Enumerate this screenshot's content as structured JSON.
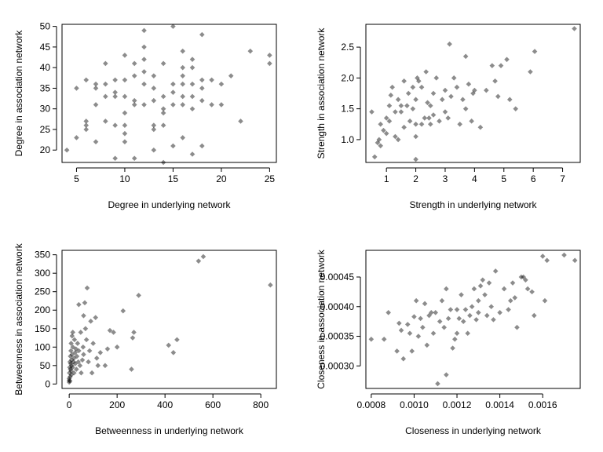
{
  "colors": {
    "point": "#000000",
    "point_opacity": 0.45,
    "frame": "#000000",
    "background": "#ffffff"
  },
  "chart_data": [
    {
      "type": "scatter",
      "xlabel": "Degree in underlying network",
      "ylabel": "Degree in association network",
      "xlim": [
        3.5,
        25.7
      ],
      "ylim": [
        17,
        50.5
      ],
      "xticks": [
        5,
        10,
        15,
        20,
        25
      ],
      "xtick_labels": [
        "5",
        "10",
        "15",
        "20",
        "25"
      ],
      "yticks": [
        20,
        25,
        30,
        35,
        40,
        45,
        50
      ],
      "ytick_labels": [
        "20",
        "25",
        "30",
        "35",
        "40",
        "45",
        "50"
      ],
      "points": [
        [
          4,
          20
        ],
        [
          5,
          23
        ],
        [
          5,
          35
        ],
        [
          6,
          25
        ],
        [
          6,
          26
        ],
        [
          6,
          27
        ],
        [
          6,
          37
        ],
        [
          7,
          22
        ],
        [
          7,
          31
        ],
        [
          7,
          35
        ],
        [
          7,
          36
        ],
        [
          8,
          27
        ],
        [
          8,
          33
        ],
        [
          8,
          36
        ],
        [
          8,
          41
        ],
        [
          9,
          18
        ],
        [
          9,
          26
        ],
        [
          9,
          33
        ],
        [
          9,
          34
        ],
        [
          9,
          37
        ],
        [
          10,
          22
        ],
        [
          10,
          24
        ],
        [
          10,
          26
        ],
        [
          10,
          29
        ],
        [
          10,
          33
        ],
        [
          10,
          37
        ],
        [
          10,
          43
        ],
        [
          11,
          18
        ],
        [
          11,
          31
        ],
        [
          11,
          32
        ],
        [
          11,
          38
        ],
        [
          11,
          41
        ],
        [
          12,
          31
        ],
        [
          12,
          36
        ],
        [
          12,
          39
        ],
        [
          12,
          42
        ],
        [
          12,
          45
        ],
        [
          12,
          49
        ],
        [
          13,
          20
        ],
        [
          13,
          25
        ],
        [
          13,
          26
        ],
        [
          13,
          32
        ],
        [
          13,
          35
        ],
        [
          13,
          38
        ],
        [
          14,
          17
        ],
        [
          14,
          26
        ],
        [
          14,
          29
        ],
        [
          14,
          30
        ],
        [
          14,
          33
        ],
        [
          14,
          41
        ],
        [
          15,
          21
        ],
        [
          15,
          31
        ],
        [
          15,
          34
        ],
        [
          15,
          36
        ],
        [
          15,
          50
        ],
        [
          16,
          23
        ],
        [
          16,
          31
        ],
        [
          16,
          33
        ],
        [
          16,
          36
        ],
        [
          16,
          38
        ],
        [
          16,
          40
        ],
        [
          16,
          44
        ],
        [
          17,
          19
        ],
        [
          17,
          30
        ],
        [
          17,
          33
        ],
        [
          17,
          36
        ],
        [
          17,
          40
        ],
        [
          17,
          42
        ],
        [
          18,
          21
        ],
        [
          18,
          32
        ],
        [
          18,
          35
        ],
        [
          18,
          37
        ],
        [
          18,
          48
        ],
        [
          19,
          31
        ],
        [
          19,
          37
        ],
        [
          20,
          31
        ],
        [
          20,
          36
        ],
        [
          21,
          38
        ],
        [
          22,
          27
        ],
        [
          23,
          44
        ],
        [
          25,
          41
        ],
        [
          25,
          43
        ]
      ]
    },
    {
      "type": "scatter",
      "xlabel": "Strength in underlying network",
      "ylabel": "Strength in association network",
      "xlim": [
        0.3,
        7.6
      ],
      "ylim": [
        0.63,
        2.87
      ],
      "xticks": [
        1,
        2,
        3,
        4,
        5,
        6,
        7
      ],
      "xtick_labels": [
        "1",
        "2",
        "3",
        "4",
        "5",
        "6",
        "7"
      ],
      "yticks": [
        1.0,
        1.5,
        2.0,
        2.5
      ],
      "ytick_labels": [
        "1.0",
        "1.5",
        "2.0",
        "2.5"
      ],
      "points": [
        [
          0.5,
          1.45
        ],
        [
          0.6,
          0.72
        ],
        [
          0.7,
          0.95
        ],
        [
          0.75,
          1.0
        ],
        [
          0.8,
          0.9
        ],
        [
          0.8,
          1.25
        ],
        [
          0.9,
          1.15
        ],
        [
          1.0,
          1.1
        ],
        [
          1.0,
          1.35
        ],
        [
          1.1,
          1.3
        ],
        [
          1.1,
          1.55
        ],
        [
          1.15,
          1.72
        ],
        [
          1.2,
          1.85
        ],
        [
          1.3,
          1.05
        ],
        [
          1.3,
          1.45
        ],
        [
          1.4,
          1.0
        ],
        [
          1.4,
          1.65
        ],
        [
          1.5,
          1.45
        ],
        [
          1.5,
          1.55
        ],
        [
          1.6,
          1.2
        ],
        [
          1.6,
          1.95
        ],
        [
          1.7,
          1.55
        ],
        [
          1.75,
          1.75
        ],
        [
          1.8,
          1.3
        ],
        [
          1.9,
          1.5
        ],
        [
          1.9,
          1.85
        ],
        [
          2.0,
          0.68
        ],
        [
          2.0,
          1.05
        ],
        [
          2.0,
          1.25
        ],
        [
          2.0,
          1.65
        ],
        [
          2.05,
          2.0
        ],
        [
          2.1,
          1.95
        ],
        [
          2.2,
          1.25
        ],
        [
          2.2,
          1.85
        ],
        [
          2.3,
          1.35
        ],
        [
          2.35,
          2.1
        ],
        [
          2.4,
          1.6
        ],
        [
          2.45,
          1.35
        ],
        [
          2.5,
          1.25
        ],
        [
          2.5,
          1.55
        ],
        [
          2.6,
          1.4
        ],
        [
          2.6,
          1.75
        ],
        [
          2.7,
          2.0
        ],
        [
          2.8,
          1.3
        ],
        [
          2.9,
          1.65
        ],
        [
          3.0,
          1.45
        ],
        [
          3.0,
          1.8
        ],
        [
          3.1,
          1.35
        ],
        [
          3.15,
          2.55
        ],
        [
          3.2,
          1.7
        ],
        [
          3.3,
          2.0
        ],
        [
          3.4,
          1.85
        ],
        [
          3.5,
          1.25
        ],
        [
          3.6,
          1.65
        ],
        [
          3.7,
          1.5
        ],
        [
          3.7,
          2.35
        ],
        [
          3.8,
          1.9
        ],
        [
          3.9,
          1.3
        ],
        [
          3.95,
          1.75
        ],
        [
          4.0,
          1.8
        ],
        [
          4.2,
          1.2
        ],
        [
          4.4,
          1.8
        ],
        [
          4.6,
          2.2
        ],
        [
          4.7,
          1.95
        ],
        [
          4.8,
          1.7
        ],
        [
          4.9,
          2.2
        ],
        [
          5.1,
          2.3
        ],
        [
          5.2,
          1.65
        ],
        [
          5.4,
          1.5
        ],
        [
          5.9,
          2.1
        ],
        [
          6.05,
          2.43
        ],
        [
          7.4,
          2.8
        ]
      ]
    },
    {
      "type": "scatter",
      "xlabel": "Betweenness in underlying network",
      "ylabel": "Betweenness in association network",
      "xlim": [
        -30,
        865
      ],
      "ylim": [
        -12,
        362
      ],
      "xticks": [
        0,
        200,
        400,
        600,
        800
      ],
      "xtick_labels": [
        "0",
        "200",
        "400",
        "600",
        "800"
      ],
      "yticks": [
        0,
        50,
        100,
        150,
        200,
        250,
        300,
        350
      ],
      "ytick_labels": [
        "0",
        "50",
        "100",
        "150",
        "200",
        "250",
        "300",
        "350"
      ],
      "points": [
        [
          0,
          5
        ],
        [
          0,
          10
        ],
        [
          0,
          15
        ],
        [
          1,
          30
        ],
        [
          2,
          45
        ],
        [
          3,
          60
        ],
        [
          3,
          8
        ],
        [
          4,
          20
        ],
        [
          5,
          40
        ],
        [
          5,
          75
        ],
        [
          6,
          55
        ],
        [
          7,
          90
        ],
        [
          8,
          35
        ],
        [
          8,
          110
        ],
        [
          9,
          25
        ],
        [
          10,
          65
        ],
        [
          10,
          50
        ],
        [
          12,
          130
        ],
        [
          12,
          80
        ],
        [
          14,
          45
        ],
        [
          15,
          100
        ],
        [
          15,
          140
        ],
        [
          18,
          60
        ],
        [
          20,
          70
        ],
        [
          20,
          30
        ],
        [
          22,
          120
        ],
        [
          25,
          85
        ],
        [
          25,
          55
        ],
        [
          28,
          95
        ],
        [
          30,
          40
        ],
        [
          32,
          75
        ],
        [
          35,
          110
        ],
        [
          38,
          60
        ],
        [
          40,
          215
        ],
        [
          40,
          90
        ],
        [
          45,
          50
        ],
        [
          48,
          140
        ],
        [
          50,
          30
        ],
        [
          55,
          65
        ],
        [
          58,
          100
        ],
        [
          60,
          185
        ],
        [
          60,
          80
        ],
        [
          65,
          220
        ],
        [
          68,
          150
        ],
        [
          72,
          120
        ],
        [
          75,
          260
        ],
        [
          80,
          60
        ],
        [
          85,
          90
        ],
        [
          90,
          170
        ],
        [
          95,
          30
        ],
        [
          100,
          110
        ],
        [
          110,
          180
        ],
        [
          115,
          70
        ],
        [
          120,
          50
        ],
        [
          130,
          85
        ],
        [
          150,
          50
        ],
        [
          160,
          95
        ],
        [
          170,
          145
        ],
        [
          185,
          140
        ],
        [
          200,
          100
        ],
        [
          225,
          198
        ],
        [
          260,
          40
        ],
        [
          265,
          125
        ],
        [
          270,
          140
        ],
        [
          290,
          240
        ],
        [
          415,
          105
        ],
        [
          435,
          85
        ],
        [
          450,
          120
        ],
        [
          540,
          333
        ],
        [
          560,
          345
        ],
        [
          840,
          268
        ]
      ]
    },
    {
      "type": "scatter",
      "xlabel": "Closeness in underlying network",
      "ylabel": "Closeness in association network",
      "xlim": [
        0.000775,
        0.001775
      ],
      "ylim": [
        0.000262,
        0.000495
      ],
      "xticks": [
        0.0008,
        0.001,
        0.0012,
        0.0014,
        0.0016
      ],
      "xtick_labels": [
        "0.0008",
        "0.0010",
        "0.0012",
        "0.0014",
        "0.0016"
      ],
      "yticks": [
        0.0003,
        0.00035,
        0.0004,
        0.00045
      ],
      "ytick_labels": [
        "0.00030",
        "0.00035",
        "0.00040",
        "0.00045"
      ],
      "points": [
        [
          0.0008,
          0.000345
        ],
        [
          0.00086,
          0.000345
        ],
        [
          0.00088,
          0.00039
        ],
        [
          0.00092,
          0.000325
        ],
        [
          0.00093,
          0.000372
        ],
        [
          0.00094,
          0.00036
        ],
        [
          0.00095,
          0.000312
        ],
        [
          0.00097,
          0.00037
        ],
        [
          0.00098,
          0.000355
        ],
        [
          0.00099,
          0.000325
        ],
        [
          0.001,
          0.000383
        ],
        [
          0.00101,
          0.00041
        ],
        [
          0.00102,
          0.00035
        ],
        [
          0.00103,
          0.00038
        ],
        [
          0.00104,
          0.000365
        ],
        [
          0.00105,
          0.000405
        ],
        [
          0.00106,
          0.000335
        ],
        [
          0.00107,
          0.000385
        ],
        [
          0.00108,
          0.00039
        ],
        [
          0.00109,
          0.000355
        ],
        [
          0.0011,
          0.00039
        ],
        [
          0.00111,
          0.00027
        ],
        [
          0.00112,
          0.000375
        ],
        [
          0.00113,
          0.00041
        ],
        [
          0.00114,
          0.000365
        ],
        [
          0.00115,
          0.00043
        ],
        [
          0.00115,
          0.000285
        ],
        [
          0.00116,
          0.00038
        ],
        [
          0.00117,
          0.000395
        ],
        [
          0.00118,
          0.00033
        ],
        [
          0.00119,
          0.000345
        ],
        [
          0.0012,
          0.000395
        ],
        [
          0.0012,
          0.000355
        ],
        [
          0.00121,
          0.00038
        ],
        [
          0.00122,
          0.00042
        ],
        [
          0.00123,
          0.000375
        ],
        [
          0.00124,
          0.000395
        ],
        [
          0.00125,
          0.000355
        ],
        [
          0.00126,
          0.000385
        ],
        [
          0.00127,
          0.0004
        ],
        [
          0.00128,
          0.00043
        ],
        [
          0.00129,
          0.000378
        ],
        [
          0.0013,
          0.00039
        ],
        [
          0.0013,
          0.00041
        ],
        [
          0.00131,
          0.000435
        ],
        [
          0.00132,
          0.000445
        ],
        [
          0.00133,
          0.00042
        ],
        [
          0.00134,
          0.000385
        ],
        [
          0.00135,
          0.00044
        ],
        [
          0.00136,
          0.0004
        ],
        [
          0.00137,
          0.000378
        ],
        [
          0.00138,
          0.00046
        ],
        [
          0.0014,
          0.00039
        ],
        [
          0.00142,
          0.00043
        ],
        [
          0.00144,
          0.000395
        ],
        [
          0.00145,
          0.00041
        ],
        [
          0.00146,
          0.00044
        ],
        [
          0.00147,
          0.000415
        ],
        [
          0.00148,
          0.000365
        ],
        [
          0.0015,
          0.00045
        ],
        [
          0.00151,
          0.00045
        ],
        [
          0.00152,
          0.000445
        ],
        [
          0.00153,
          0.00043
        ],
        [
          0.00155,
          0.000425
        ],
        [
          0.00156,
          0.000385
        ],
        [
          0.0016,
          0.000485
        ],
        [
          0.00161,
          0.00041
        ],
        [
          0.00162,
          0.000478
        ],
        [
          0.0017,
          0.000487
        ],
        [
          0.00175,
          0.000478
        ]
      ]
    }
  ]
}
